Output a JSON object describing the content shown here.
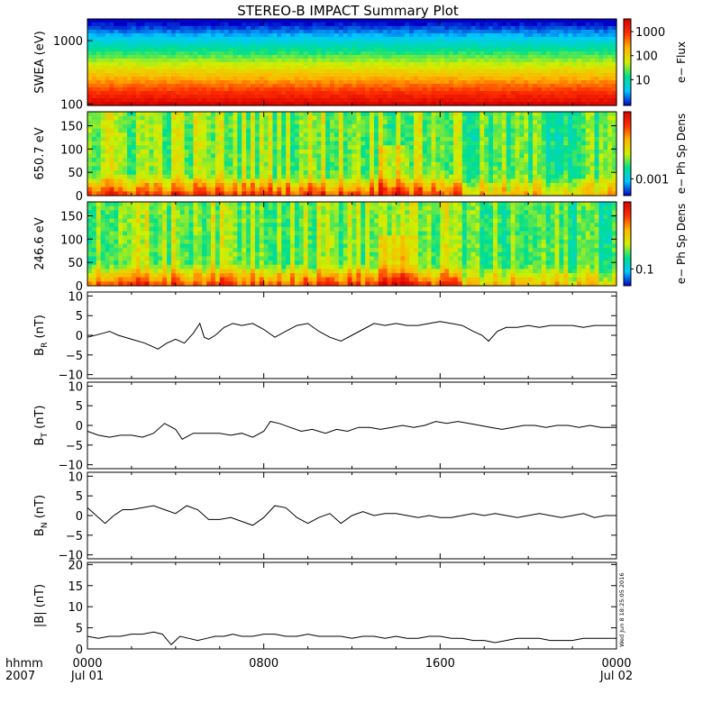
{
  "title": "STEREO-B IMPACT Summary Plot",
  "chart_data": [
    {
      "type": "heatmap",
      "ylabel": "SWEA (eV)",
      "y_scale": "log",
      "y_ticks": [
        "1000",
        "100"
      ],
      "ylim": [
        95,
        2200
      ],
      "colorbar_label": "e− Flux",
      "colorbar_ticks": [
        "1000",
        "100",
        "10"
      ],
      "colorbar_scale": "log",
      "colormap": [
        "#0000c8",
        "#00c8ff",
        "#00e08c",
        "#d0f000",
        "#ffb400",
        "#ff3000",
        "#d80000"
      ]
    },
    {
      "type": "heatmap",
      "ylabel": "650.7 eV",
      "y_ticks": [
        "150",
        "100",
        "50",
        "0"
      ],
      "ylim": [
        0,
        180
      ],
      "colorbar_label": "e− Ph Sp Dens",
      "colorbar_ticks": [
        "0.001"
      ]
    },
    {
      "type": "heatmap",
      "ylabel": "246.6 eV",
      "y_ticks": [
        "150",
        "100",
        "50",
        "0"
      ],
      "ylim": [
        0,
        180
      ],
      "colorbar_label": "e− Ph Sp Dens",
      "colorbar_ticks": [
        "0.1"
      ]
    },
    {
      "type": "line",
      "ylabel": "B_R (nT)",
      "ylabel_main": "B",
      "ylabel_sub": "R",
      "ylabel_unit": " (nT)",
      "y_ticks": [
        "10",
        "5",
        "0",
        "−5",
        "−10"
      ],
      "ylim": [
        -11,
        11
      ],
      "x_hours": [
        0,
        0.7,
        1.0,
        1.4,
        2.0,
        2.6,
        3.2,
        3.6,
        4.0,
        4.4,
        4.8,
        5.1,
        5.3,
        5.5,
        5.8,
        6.2,
        6.6,
        7.0,
        7.5,
        8.0,
        8.5,
        9.0,
        9.5,
        10.0,
        10.5,
        11.0,
        11.5,
        12.0,
        12.5,
        13.0,
        13.5,
        14.0,
        14.5,
        15.0,
        15.5,
        16.0,
        16.5,
        17.0,
        17.5,
        17.9,
        18.2,
        18.6,
        19.0,
        19.5,
        20.0,
        20.5,
        21.0,
        21.5,
        22.0,
        22.5,
        23.0,
        23.5,
        24.0
      ],
      "y_values": [
        -0.5,
        0.5,
        1.0,
        0.0,
        -1.0,
        -2.0,
        -3.5,
        -2.0,
        -1.0,
        -2.0,
        0.5,
        3.0,
        -0.5,
        -1.0,
        0.0,
        2.0,
        3.0,
        2.5,
        3.0,
        1.5,
        -0.5,
        1.0,
        2.5,
        3.0,
        1.0,
        -0.5,
        -1.5,
        0.0,
        1.5,
        3.0,
        2.5,
        3.0,
        2.5,
        2.5,
        3.0,
        3.5,
        3.0,
        2.5,
        1.0,
        0.0,
        -1.5,
        1.0,
        2.0,
        2.0,
        2.5,
        2.0,
        2.5,
        2.5,
        2.5,
        2.0,
        2.5,
        2.5,
        2.5
      ]
    },
    {
      "type": "line",
      "ylabel": "B_T (nT)",
      "ylabel_main": "B",
      "ylabel_sub": "T",
      "ylabel_unit": " (nT)",
      "y_ticks": [
        "10",
        "5",
        "0",
        "−5",
        "−10"
      ],
      "ylim": [
        -11,
        11
      ],
      "x_hours": [
        0,
        0.5,
        1.0,
        1.5,
        2.0,
        2.5,
        3.0,
        3.5,
        4.0,
        4.3,
        4.8,
        5.5,
        6.0,
        6.5,
        7.0,
        7.5,
        8.0,
        8.3,
        8.7,
        9.2,
        9.7,
        10.2,
        10.8,
        11.3,
        11.8,
        12.3,
        12.8,
        13.3,
        13.8,
        14.3,
        14.8,
        15.3,
        15.8,
        16.3,
        16.8,
        17.3,
        17.8,
        18.3,
        18.8,
        19.3,
        19.8,
        20.3,
        20.8,
        21.3,
        21.8,
        22.3,
        22.8,
        23.3,
        24.0
      ],
      "y_values": [
        -1.5,
        -2.5,
        -3.0,
        -2.5,
        -2.5,
        -3.0,
        -2.0,
        0.5,
        -1.0,
        -3.5,
        -2.0,
        -2.0,
        -2.0,
        -2.5,
        -2.0,
        -3.0,
        -1.5,
        1.0,
        0.5,
        -0.5,
        -1.5,
        -1.0,
        -2.0,
        -1.0,
        -1.5,
        -0.5,
        -0.5,
        -1.0,
        -0.5,
        0.0,
        -0.5,
        0.0,
        1.0,
        0.5,
        1.0,
        0.5,
        0.0,
        -0.5,
        -1.0,
        -0.5,
        0.0,
        0.0,
        -0.5,
        0.0,
        0.0,
        -0.5,
        0.0,
        -0.5,
        -0.5
      ]
    },
    {
      "type": "line",
      "ylabel": "B_N (nT)",
      "ylabel_main": "B",
      "ylabel_sub": "N",
      "ylabel_unit": " (nT)",
      "y_ticks": [
        "10",
        "5",
        "0",
        "−5",
        "−10"
      ],
      "ylim": [
        -11,
        11
      ],
      "x_hours": [
        0,
        0.4,
        0.8,
        1.2,
        1.6,
        2.0,
        2.5,
        3.0,
        3.5,
        4.0,
        4.5,
        5.0,
        5.5,
        6.0,
        6.5,
        7.0,
        7.5,
        8.0,
        8.5,
        9.0,
        9.5,
        10.0,
        10.5,
        11.0,
        11.5,
        12.0,
        12.5,
        13.0,
        13.5,
        14.0,
        14.5,
        15.0,
        15.5,
        16.0,
        16.5,
        17.0,
        17.5,
        18.0,
        18.5,
        19.0,
        19.5,
        20.0,
        20.5,
        21.0,
        21.5,
        22.0,
        22.5,
        23.0,
        23.5,
        24.0
      ],
      "y_values": [
        2.0,
        0.0,
        -2.0,
        0.0,
        1.5,
        1.5,
        2.0,
        2.5,
        1.5,
        0.5,
        2.5,
        1.5,
        -1.0,
        -1.0,
        -0.5,
        -1.5,
        -2.5,
        -0.5,
        2.5,
        2.0,
        -0.5,
        -2.0,
        -0.5,
        0.5,
        -2.0,
        0.0,
        1.0,
        0.0,
        0.5,
        0.5,
        0.0,
        -0.5,
        0.0,
        -0.5,
        -0.5,
        0.0,
        0.5,
        0.0,
        0.5,
        0.0,
        -0.5,
        0.0,
        0.5,
        0.0,
        -0.5,
        0.0,
        0.5,
        -0.5,
        0.0,
        0.0
      ]
    },
    {
      "type": "line",
      "ylabel": "|B| (nT)",
      "ylabel_main": "|B|",
      "ylabel_sub": "",
      "ylabel_unit": " (nT)",
      "y_ticks": [
        "20",
        "15",
        "10",
        "5",
        "0"
      ],
      "ylim": [
        0,
        20.5
      ],
      "x_hours": [
        0,
        0.5,
        1.0,
        1.5,
        2.0,
        2.5,
        3.0,
        3.4,
        3.8,
        4.2,
        4.6,
        5.0,
        5.4,
        5.8,
        6.2,
        6.6,
        7.0,
        7.5,
        8.0,
        8.5,
        9.0,
        9.5,
        10.0,
        10.5,
        11.0,
        11.5,
        12.0,
        12.5,
        13.0,
        13.5,
        14.0,
        14.5,
        15.0,
        15.5,
        16.0,
        16.5,
        17.0,
        17.5,
        18.0,
        18.5,
        19.0,
        19.5,
        20.0,
        20.5,
        21.0,
        21.5,
        22.0,
        22.5,
        23.0,
        23.5,
        24.0
      ],
      "y_values": [
        3.0,
        2.5,
        3.0,
        3.0,
        3.5,
        3.5,
        4.0,
        3.5,
        1.0,
        3.0,
        2.5,
        2.0,
        2.5,
        3.0,
        3.0,
        3.5,
        3.0,
        3.0,
        3.5,
        3.5,
        3.0,
        3.0,
        3.5,
        3.0,
        3.0,
        3.0,
        2.5,
        3.0,
        3.0,
        2.5,
        3.0,
        2.5,
        2.5,
        3.0,
        3.0,
        2.5,
        2.5,
        2.0,
        2.0,
        1.5,
        2.0,
        2.5,
        2.5,
        2.5,
        2.0,
        2.0,
        2.0,
        2.5,
        2.5,
        2.5,
        2.5
      ]
    }
  ],
  "x_axis": {
    "row_label_top": "hhmm",
    "row_label_bottom": "2007",
    "ticks": [
      {
        "hour": 0,
        "time": "0000",
        "date": "Jul 01"
      },
      {
        "hour": 8,
        "time": "0800",
        "date": ""
      },
      {
        "hour": 16,
        "time": "1600",
        "date": ""
      },
      {
        "hour": 24,
        "time": "0000",
        "date": "Jul 02"
      }
    ],
    "xlim": [
      0,
      24
    ]
  },
  "timestamp": "Wed Jun 8 18:25:05 2016"
}
